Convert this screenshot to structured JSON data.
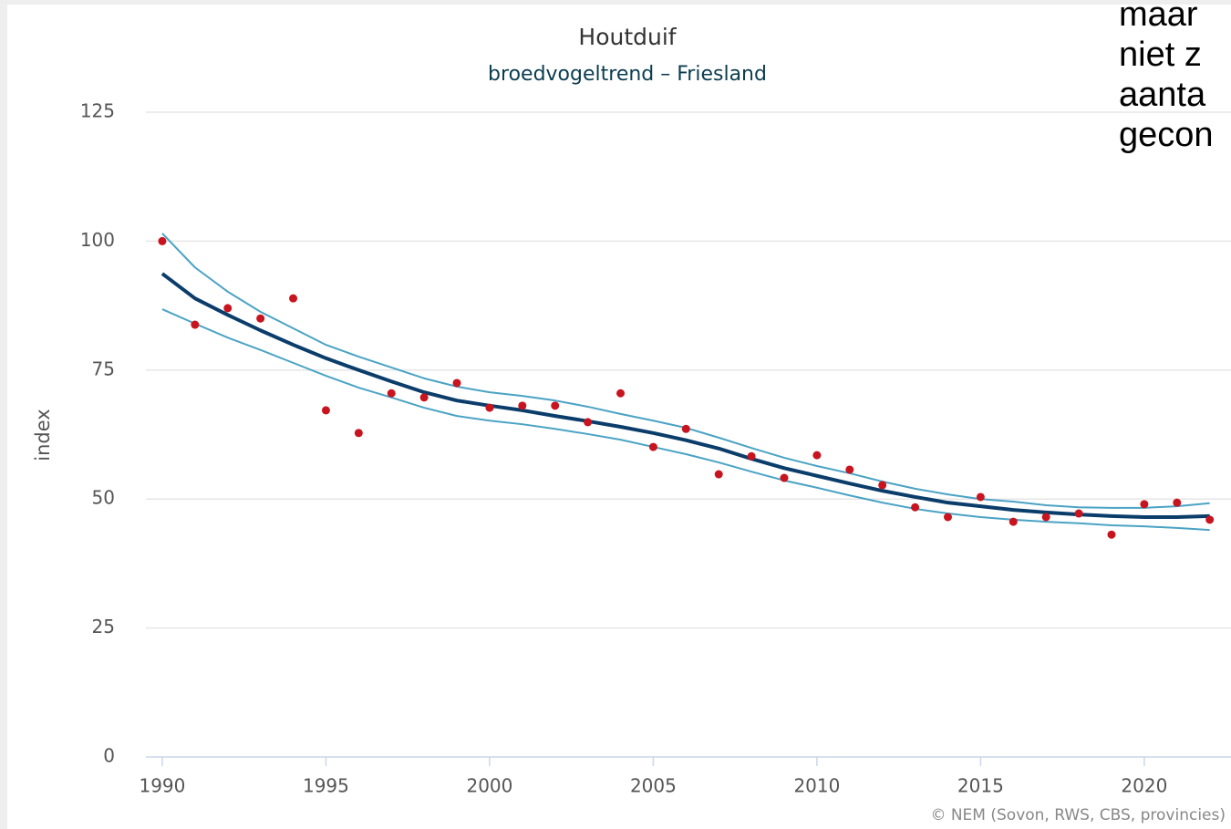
{
  "chart_data": {
    "type": "line",
    "title": "Houtduif",
    "subtitle": "broedvogeltrend – Friesland",
    "y_label": "index",
    "credits": "© NEM (Sovon, RWS, CBS, provincies)",
    "overlay_text": [
      "maar",
      "niet z",
      "aanta",
      "gecon"
    ],
    "x": [
      1990,
      1991,
      1992,
      1993,
      1994,
      1995,
      1996,
      1997,
      1998,
      1999,
      2000,
      2001,
      2002,
      2003,
      2004,
      2005,
      2006,
      2007,
      2008,
      2009,
      2010,
      2011,
      2012,
      2013,
      2014,
      2015,
      2016,
      2017,
      2018,
      2019,
      2020,
      2021,
      2022
    ],
    "series": [
      {
        "type": "line",
        "color": "#4aa3c4",
        "values": [
          101.5,
          94.9,
          90.2,
          86.3,
          83.1,
          79.9,
          77.6,
          75.5,
          73.4,
          71.8,
          70.7,
          70.0,
          69.1,
          67.9,
          66.5,
          65.2,
          63.8,
          61.9,
          59.9,
          58.0,
          56.4,
          55.0,
          53.4,
          52.0,
          50.9,
          50.0,
          49.5,
          48.8,
          48.4,
          48.3,
          48.3,
          48.6,
          49.2
        ]
      },
      {
        "type": "line",
        "color": "#4aa3c4",
        "values": [
          86.8,
          84.0,
          81.3,
          78.9,
          76.4,
          73.9,
          71.6,
          69.7,
          67.7,
          66.1,
          65.2,
          64.5,
          63.6,
          62.6,
          61.5,
          60.1,
          58.7,
          57.1,
          55.3,
          53.6,
          52.2,
          50.7,
          49.3,
          48.1,
          47.2,
          46.5,
          46.0,
          45.6,
          45.3,
          44.9,
          44.7,
          44.4,
          44.0
        ]
      },
      {
        "type": "line",
        "color": "#0b3d6b",
        "values": [
          93.7,
          88.9,
          85.7,
          82.7,
          79.9,
          77.3,
          75.0,
          72.8,
          70.7,
          69.1,
          68.1,
          67.2,
          66.1,
          65.1,
          64.0,
          62.8,
          61.4,
          59.8,
          57.8,
          56.0,
          54.5,
          53.0,
          51.6,
          50.4,
          49.3,
          48.6,
          47.9,
          47.4,
          47.0,
          46.7,
          46.5,
          46.5,
          46.7
        ]
      },
      {
        "type": "scatter",
        "color": "#c8141e",
        "values": [
          100,
          83.8,
          87.0,
          85.0,
          88.9,
          67.2,
          62.8,
          70.5,
          69.7,
          72.5,
          67.7,
          68.1,
          68.1,
          64.9,
          70.5,
          60.1,
          63.6,
          54.8,
          58.3,
          54.1,
          58.5,
          55.7,
          52.7,
          48.4,
          46.5,
          50.4,
          45.6,
          46.5,
          47.2,
          43.1,
          49.0,
          49.3,
          46.0
        ]
      }
    ],
    "xlim": [
      1989.5,
      2022.65
    ],
    "xticks": [
      1990,
      1995,
      2000,
      2005,
      2010,
      2015,
      2020
    ],
    "ylim": [
      0,
      125
    ],
    "yticks": [
      0,
      25,
      50,
      75,
      100,
      125
    ],
    "grid": true
  }
}
